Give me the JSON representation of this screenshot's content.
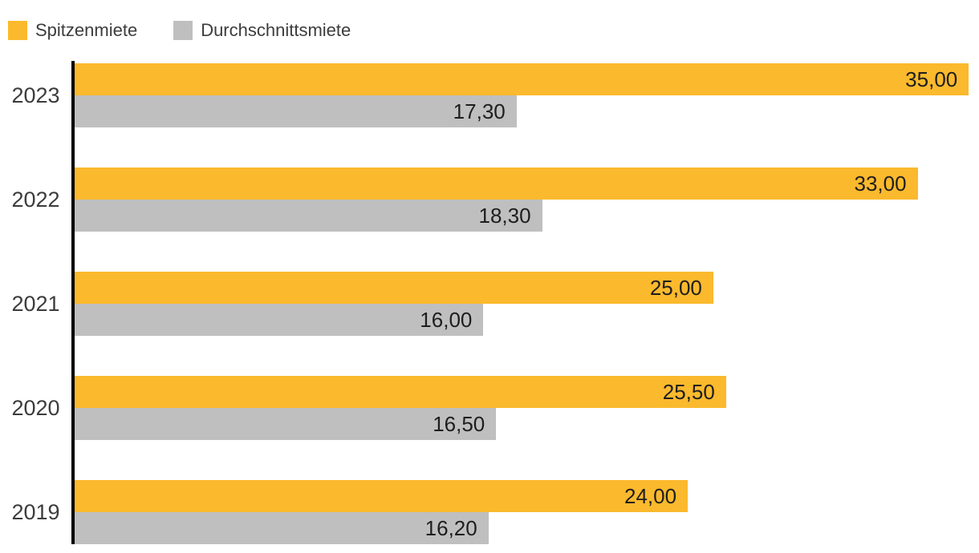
{
  "chart_data": {
    "type": "bar",
    "orientation": "horizontal",
    "title": "",
    "xlabel": "",
    "ylabel": "",
    "categories": [
      "2023",
      "2022",
      "2021",
      "2020",
      "2019"
    ],
    "series": [
      {
        "name": "Spitzenmiete",
        "color": "#fbb92d",
        "values": [
          35.0,
          33.0,
          25.0,
          25.5,
          24.0
        ],
        "labels": [
          "35,00",
          "33,00",
          "25,00",
          "25,50",
          "24,00"
        ]
      },
      {
        "name": "Durchschnittsmiete",
        "color": "#bfbfbf",
        "values": [
          17.3,
          18.3,
          16.0,
          16.5,
          16.2
        ],
        "labels": [
          "17,30",
          "18,30",
          "16,00",
          "16,50",
          "16,20"
        ]
      }
    ],
    "xlim": [
      0,
      35.4
    ],
    "grid": false,
    "legend_position": "top-left",
    "value_labels": "inside-end",
    "axis_color": "#000000",
    "label_color": "#3c3c3c",
    "value_label_color": "#1e1e1e"
  }
}
